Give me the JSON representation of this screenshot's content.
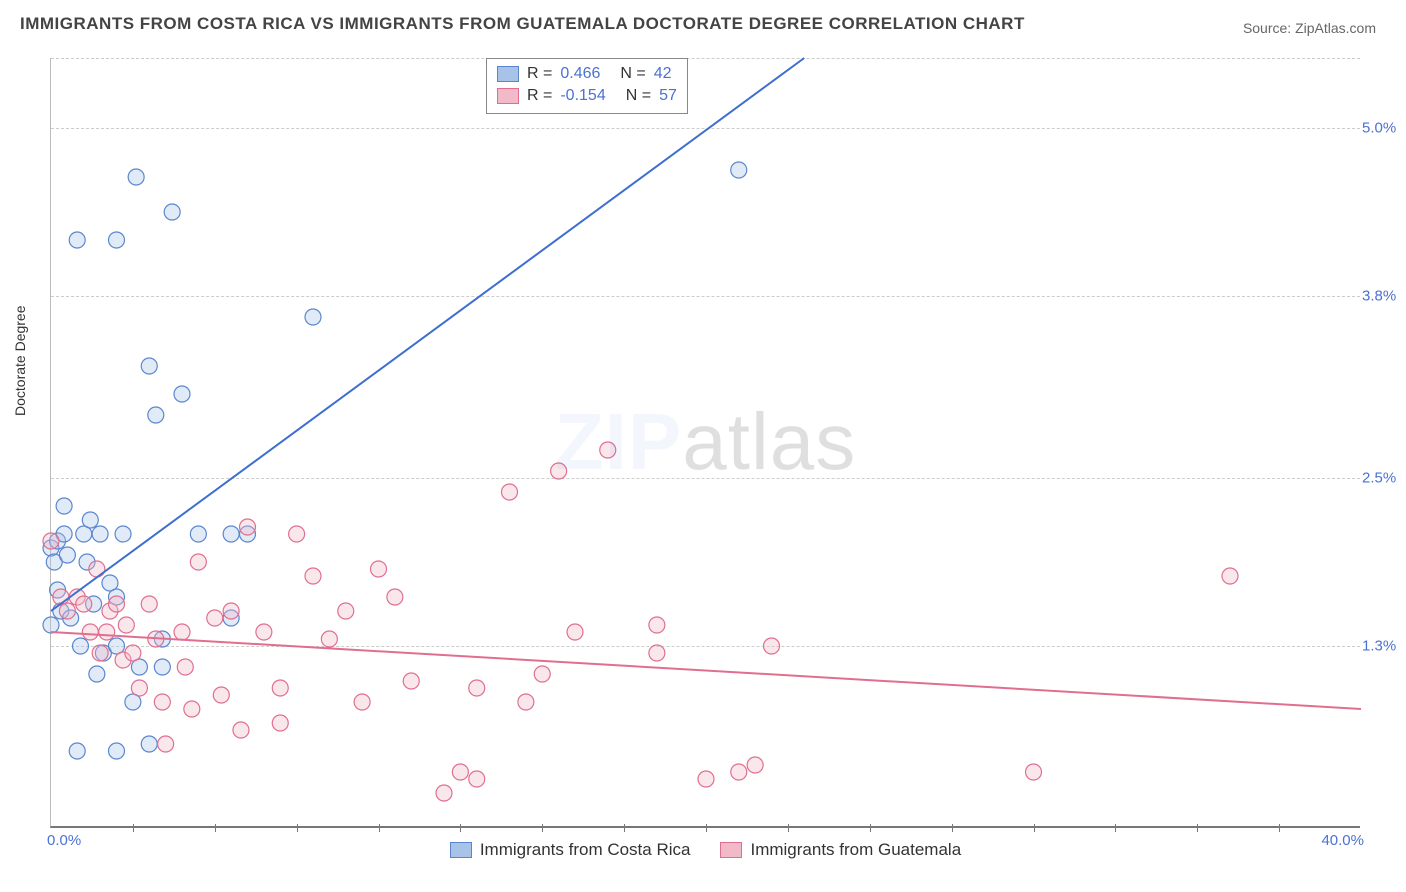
{
  "title": "IMMIGRANTS FROM COSTA RICA VS IMMIGRANTS FROM GUATEMALA DOCTORATE DEGREE CORRELATION CHART",
  "source": "Source: ZipAtlas.com",
  "y_axis_label": "Doctorate Degree",
  "watermark": {
    "bold": "ZIP",
    "rest": "atlas"
  },
  "chart": {
    "type": "scatter-with-trend",
    "background_color": "#ffffff",
    "grid_color": "#cccccc",
    "axis_color": "#777777",
    "tick_label_color": "#4a72d4",
    "xlim": [
      0,
      40
    ],
    "ylim": [
      0,
      5.5
    ],
    "xtick_labels": {
      "min": "0.0%",
      "max": "40.0%"
    },
    "xtick_marks": [
      2.5,
      5,
      7.5,
      10,
      12.5,
      15,
      17.5,
      20,
      22.5,
      25,
      27.5,
      30,
      32.5,
      35,
      37.5
    ],
    "yticks": [
      {
        "v": 1.3,
        "label": "1.3%"
      },
      {
        "v": 2.5,
        "label": "2.5%"
      },
      {
        "v": 3.8,
        "label": "3.8%"
      },
      {
        "v": 5.0,
        "label": "5.0%"
      }
    ],
    "marker_radius": 8,
    "trend_line_width": 2,
    "series": [
      {
        "id": "costa_rica",
        "label": "Immigrants from Costa Rica",
        "fill": "#a8c3e8",
        "stroke": "#5b86cf",
        "line_color": "#3e6fd0",
        "R": "0.466",
        "N": "42",
        "trend": {
          "x1": 0,
          "y1": 1.55,
          "x2": 23,
          "y2": 5.5
        },
        "points": [
          [
            0.0,
            1.45
          ],
          [
            0.0,
            2.0
          ],
          [
            0.1,
            1.9
          ],
          [
            0.2,
            2.05
          ],
          [
            0.2,
            1.7
          ],
          [
            0.3,
            1.55
          ],
          [
            0.4,
            2.3
          ],
          [
            0.4,
            2.1
          ],
          [
            0.5,
            1.95
          ],
          [
            0.6,
            1.5
          ],
          [
            0.8,
            0.55
          ],
          [
            0.9,
            1.3
          ],
          [
            1.0,
            2.1
          ],
          [
            1.1,
            1.9
          ],
          [
            1.2,
            2.2
          ],
          [
            1.3,
            1.6
          ],
          [
            1.4,
            1.1
          ],
          [
            1.5,
            2.1
          ],
          [
            1.6,
            1.25
          ],
          [
            1.8,
            1.75
          ],
          [
            2.0,
            0.55
          ],
          [
            2.0,
            1.65
          ],
          [
            2.0,
            1.3
          ],
          [
            2.2,
            2.1
          ],
          [
            2.5,
            0.9
          ],
          [
            2.6,
            4.65
          ],
          [
            2.7,
            1.15
          ],
          [
            3.0,
            0.6
          ],
          [
            3.0,
            3.3
          ],
          [
            3.2,
            2.95
          ],
          [
            3.4,
            1.35
          ],
          [
            3.4,
            1.15
          ],
          [
            3.7,
            4.4
          ],
          [
            4.0,
            3.1
          ],
          [
            4.5,
            2.1
          ],
          [
            5.5,
            2.1
          ],
          [
            6.0,
            2.1
          ],
          [
            8.0,
            3.65
          ],
          [
            0.8,
            4.2
          ],
          [
            2.0,
            4.2
          ],
          [
            21.0,
            4.7
          ],
          [
            5.5,
            1.5
          ]
        ]
      },
      {
        "id": "guatemala",
        "label": "Immigrants from Guatemala",
        "fill": "#f2b9c8",
        "stroke": "#e06f8f",
        "line_color": "#e06f8f",
        "R": "-0.154",
        "N": "57",
        "trend": {
          "x1": 0,
          "y1": 1.4,
          "x2": 40,
          "y2": 0.85
        },
        "points": [
          [
            0.0,
            2.05
          ],
          [
            0.3,
            1.65
          ],
          [
            0.5,
            1.55
          ],
          [
            0.8,
            1.65
          ],
          [
            1.0,
            1.6
          ],
          [
            1.2,
            1.4
          ],
          [
            1.4,
            1.85
          ],
          [
            1.5,
            1.25
          ],
          [
            1.7,
            1.4
          ],
          [
            1.8,
            1.55
          ],
          [
            2.0,
            1.6
          ],
          [
            2.2,
            1.2
          ],
          [
            2.3,
            1.45
          ],
          [
            2.5,
            1.25
          ],
          [
            2.7,
            1.0
          ],
          [
            3.0,
            1.6
          ],
          [
            3.2,
            1.35
          ],
          [
            3.4,
            0.9
          ],
          [
            3.5,
            0.6
          ],
          [
            4.0,
            1.4
          ],
          [
            4.1,
            1.15
          ],
          [
            4.3,
            0.85
          ],
          [
            4.5,
            1.9
          ],
          [
            5.0,
            1.5
          ],
          [
            5.2,
            0.95
          ],
          [
            5.5,
            1.55
          ],
          [
            5.8,
            0.7
          ],
          [
            6.0,
            2.15
          ],
          [
            6.5,
            1.4
          ],
          [
            7.0,
            1.0
          ],
          [
            7.5,
            2.1
          ],
          [
            8.0,
            1.8
          ],
          [
            8.5,
            1.35
          ],
          [
            9.0,
            1.55
          ],
          [
            9.5,
            0.9
          ],
          [
            10.0,
            1.85
          ],
          [
            10.5,
            1.65
          ],
          [
            11.0,
            1.05
          ],
          [
            12.0,
            0.25
          ],
          [
            12.5,
            0.4
          ],
          [
            13.0,
            0.35
          ],
          [
            13.0,
            1.0
          ],
          [
            14.0,
            2.4
          ],
          [
            14.5,
            0.9
          ],
          [
            15.0,
            1.1
          ],
          [
            15.5,
            2.55
          ],
          [
            16.0,
            1.4
          ],
          [
            17.0,
            2.7
          ],
          [
            18.5,
            1.45
          ],
          [
            18.5,
            1.25
          ],
          [
            20.0,
            0.35
          ],
          [
            21.0,
            0.4
          ],
          [
            21.5,
            0.45
          ],
          [
            22.0,
            1.3
          ],
          [
            30.0,
            0.4
          ],
          [
            36.0,
            1.8
          ],
          [
            7.0,
            0.75
          ]
        ]
      }
    ]
  },
  "legend_top": {
    "rows": [
      {
        "series": "costa_rica",
        "R_label": "R =",
        "N_label": "N ="
      },
      {
        "series": "guatemala",
        "R_label": "R =",
        "N_label": "N ="
      }
    ]
  }
}
